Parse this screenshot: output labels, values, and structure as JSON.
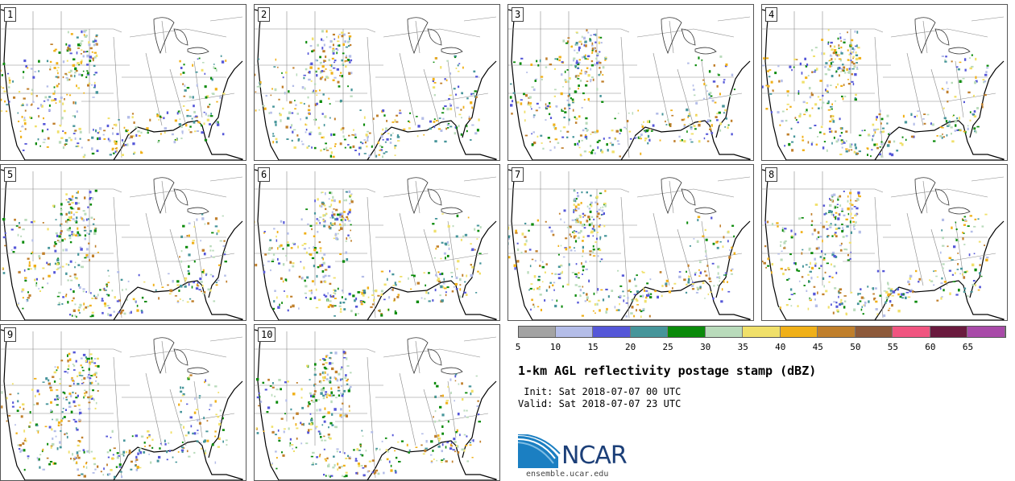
{
  "panels": [
    {
      "label": "1"
    },
    {
      "label": "2"
    },
    {
      "label": "3"
    },
    {
      "label": "4"
    },
    {
      "label": "5"
    },
    {
      "label": "6"
    },
    {
      "label": "7"
    },
    {
      "label": "8"
    },
    {
      "label": "9"
    },
    {
      "label": "10"
    }
  ],
  "legend": {
    "colors": [
      "#a3a3a3",
      "#b4bde8",
      "#5557d8",
      "#46959a",
      "#0a8a0a",
      "#b9dbbb",
      "#f0e06a",
      "#f0b018",
      "#c07f2b",
      "#8d5a3a",
      "#f05580",
      "#6a1a3e",
      "#a84aa8"
    ],
    "ticks": [
      "5",
      "10",
      "15",
      "20",
      "25",
      "30",
      "35",
      "40",
      "45",
      "50",
      "55",
      "60",
      "65"
    ]
  },
  "title": "1-km AGL reflectivity postage stamp (dBZ)",
  "init_line": " Init: Sat 2018-07-07 00 UTC",
  "valid_line": "Valid: Sat 2018-07-07 23 UTC",
  "logo_text": "NCAR",
  "site": "ensemble.ucar.edu"
}
